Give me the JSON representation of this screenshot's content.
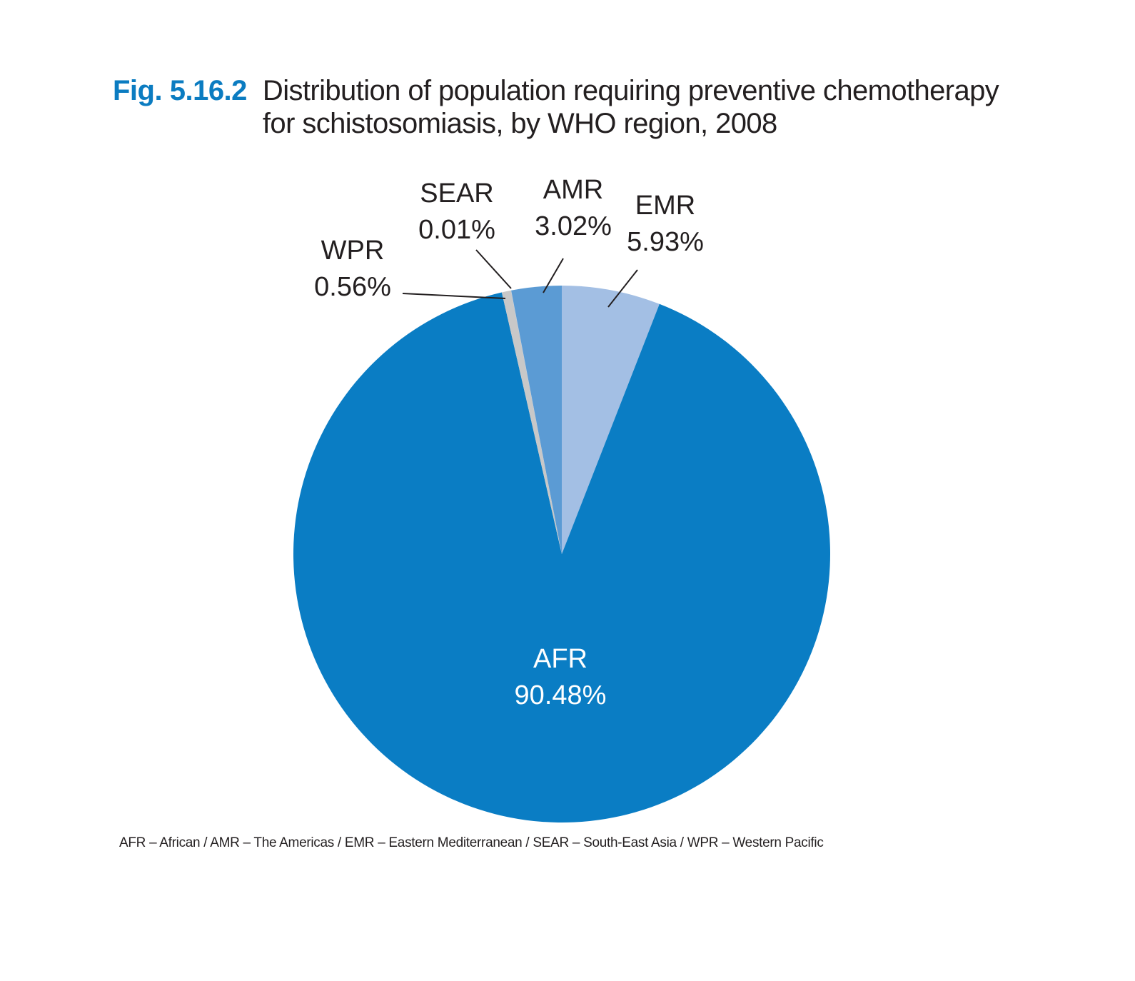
{
  "figure": {
    "label": "Fig. 5.16.2",
    "title": "Distribution of population requiring preventive chemotherapy for schistosomiasis, by WHO region, 2008"
  },
  "chart_data": {
    "type": "pie",
    "title": "Distribution of population requiring preventive chemotherapy for schistosomiasis, by WHO region, 2008",
    "start": "12 o'clock",
    "direction": "clockwise",
    "slices": [
      {
        "label": "EMR",
        "value": 5.93,
        "value_label": "5.93%",
        "color": "#a3bfe4"
      },
      {
        "label": "AFR",
        "value": 90.48,
        "value_label": "90.48%",
        "color": "#0a7dc4"
      },
      {
        "label": "WPR",
        "value": 0.56,
        "value_label": "0.56%",
        "color": "#c8c8c8"
      },
      {
        "label": "SEAR",
        "value": 0.01,
        "value_label": "0.01%",
        "color": "#b8cbe6"
      },
      {
        "label": "AMR",
        "value": 3.02,
        "value_label": "3.02%",
        "color": "#5b9bd4"
      }
    ]
  },
  "footnote": "AFR – African / AMR – The Americas / EMR – Eastern Mediterranean / SEAR – South-East Asia / WPR – Western Pacific"
}
